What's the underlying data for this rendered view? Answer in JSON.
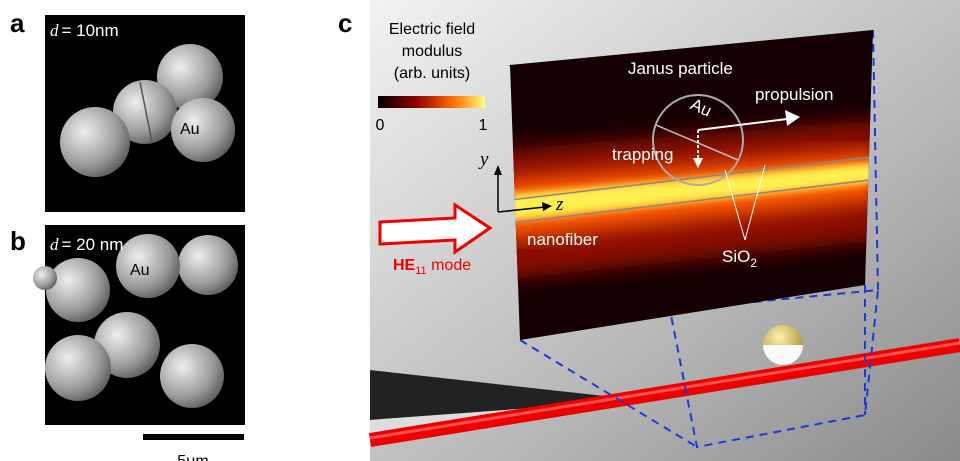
{
  "panels": {
    "a": {
      "label": "a",
      "d_symbol": "d",
      "d_value": "= 10nm",
      "au": "Au"
    },
    "b": {
      "label": "b",
      "d_symbol": "d",
      "d_value": "= 20 nm",
      "au": "Au"
    },
    "scale_bar": "5μm",
    "c": {
      "label": "c",
      "colorbar": {
        "title_lines": [
          "Electric field",
          "modulus",
          "(arb. units)"
        ],
        "min": "0",
        "max": "1"
      },
      "janus": "Janus particle",
      "au": "Au",
      "propulsion": "propulsion",
      "trapping": "trapping",
      "axis_y": "y",
      "axis_z": "z",
      "nanofiber": "nanofiber",
      "sio2": {
        "base": "SiO",
        "sub": "2"
      },
      "mode": {
        "base": "HE",
        "sub": "11",
        "rest": " mode"
      }
    }
  }
}
